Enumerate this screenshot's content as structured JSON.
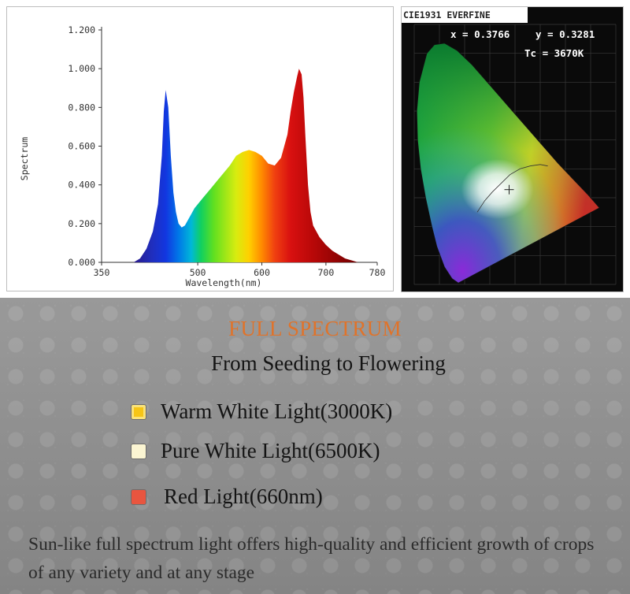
{
  "chart_data": [
    {
      "type": "area",
      "title": "",
      "xlabel": "Wavelength(nm)",
      "ylabel": "Spectrum",
      "xlim": [
        350,
        780
      ],
      "ylim": [
        0,
        1.2
      ],
      "x_ticks": [
        350,
        500,
        600,
        700,
        780
      ],
      "y_ticks": [
        0.0,
        0.2,
        0.4,
        0.6,
        0.8,
        1.0,
        1.2
      ],
      "x_tick_labels": [
        "350",
        "500",
        "600",
        "700",
        "780"
      ],
      "y_tick_labels": [
        "0.000",
        "0.200",
        "0.400",
        "0.600",
        "0.800",
        "1.000",
        "1.200"
      ],
      "grid": false,
      "legend": false,
      "fill": "rainbow-by-wavelength",
      "series": [
        {
          "x": [
            400,
            410,
            420,
            430,
            438,
            444,
            447,
            450,
            454,
            458,
            462,
            466,
            470,
            475,
            480,
            485,
            490,
            495,
            500,
            505,
            510,
            520,
            530,
            540,
            550,
            560,
            570,
            580,
            590,
            600,
            610,
            620,
            630,
            640,
            645,
            650,
            655,
            658,
            662,
            665,
            668,
            672,
            676,
            680,
            690,
            700,
            710,
            720,
            730,
            740,
            750
          ],
          "y": [
            0.0,
            0.02,
            0.07,
            0.16,
            0.3,
            0.55,
            0.78,
            0.89,
            0.8,
            0.55,
            0.36,
            0.26,
            0.2,
            0.18,
            0.19,
            0.22,
            0.25,
            0.28,
            0.3,
            0.32,
            0.34,
            0.38,
            0.42,
            0.46,
            0.5,
            0.55,
            0.57,
            0.58,
            0.57,
            0.55,
            0.51,
            0.5,
            0.54,
            0.66,
            0.78,
            0.88,
            0.96,
            1.0,
            0.97,
            0.85,
            0.65,
            0.4,
            0.26,
            0.19,
            0.13,
            0.09,
            0.06,
            0.04,
            0.02,
            0.01,
            0.0
          ]
        }
      ]
    },
    {
      "type": "scatter",
      "title": "CIE1931 EVERFINE",
      "x_readout": "x = 0.3766",
      "y_readout": "y = 0.3281",
      "tc_readout": "Tc = 3670K",
      "x": [
        0.3766
      ],
      "y": [
        0.3281
      ],
      "xlim": [
        0,
        0.8
      ],
      "ylim": [
        0,
        0.9
      ],
      "grid": true,
      "background": "#0a0a0a"
    }
  ],
  "heading": "FULL SPECTRUM",
  "subheading": "From Seeding to Flowering",
  "legend": [
    {
      "label": "Warm White Light(3000K)",
      "color": "#f6c516"
    },
    {
      "label": "Pure White Light(6500K)",
      "color": "#fbf5d2"
    },
    {
      "label": "Red Light(660nm)",
      "color": "#e8553f"
    }
  ],
  "description": "Sun-like full spectrum light offers high-quality and efficient growth of crops of any variety and at any stage"
}
